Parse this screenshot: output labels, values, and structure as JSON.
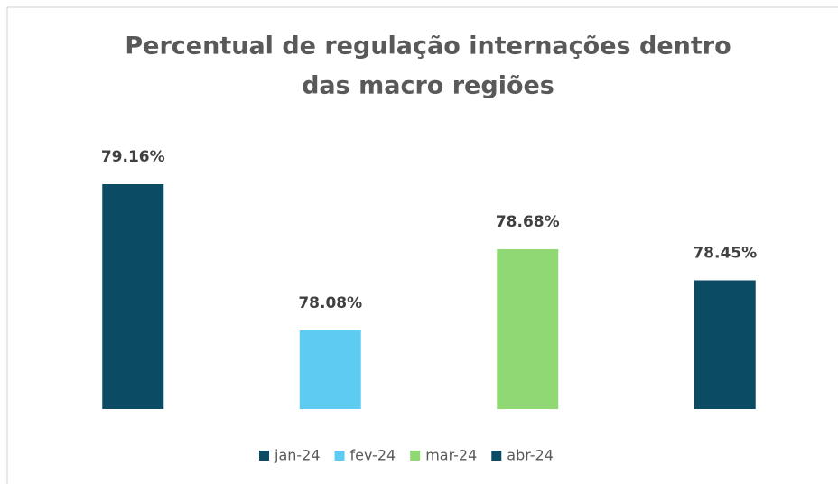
{
  "chart_data": {
    "type": "bar",
    "title": [
      "Percentual de regulação internações dentro",
      "das macro regiões"
    ],
    "categories": [
      "jan-24",
      "fev-24",
      "mar-24",
      "abr-24"
    ],
    "values": [
      79.16,
      78.08,
      78.68,
      78.45
    ],
    "value_labels": [
      "79.16%",
      "78.08%",
      "78.68%",
      "78.45%"
    ],
    "colors": [
      "#0b4b63",
      "#5ecbf3",
      "#8fd873",
      "#0b4b63"
    ],
    "ylim": [
      77.5,
      79.5
    ],
    "grid": false
  }
}
